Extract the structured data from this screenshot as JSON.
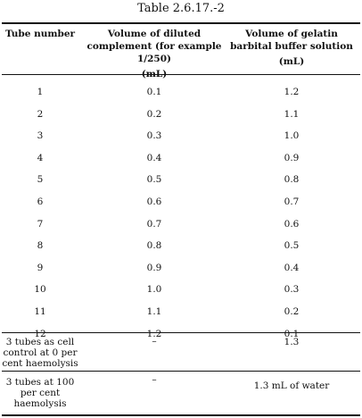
{
  "caption": "Table 2.6.17.-2",
  "headers": {
    "tube": "Tube number",
    "complement": "Volume of diluted complement (for example 1/250)",
    "complement_unit": "(mL)",
    "buffer": "Volume of gelatin barbital buffer solution",
    "buffer_unit": "(mL)"
  },
  "rows": [
    {
      "tube": "1",
      "complement": "0.1",
      "buffer": "1.2"
    },
    {
      "tube": "2",
      "complement": "0.2",
      "buffer": "1.1"
    },
    {
      "tube": "3",
      "complement": "0.3",
      "buffer": "1.0"
    },
    {
      "tube": "4",
      "complement": "0.4",
      "buffer": "0.9"
    },
    {
      "tube": "5",
      "complement": "0.5",
      "buffer": "0.8"
    },
    {
      "tube": "6",
      "complement": "0.6",
      "buffer": "0.7"
    },
    {
      "tube": "7",
      "complement": "0.7",
      "buffer": "0.6"
    },
    {
      "tube": "8",
      "complement": "0.8",
      "buffer": "0.5"
    },
    {
      "tube": "9",
      "complement": "0.9",
      "buffer": "0.4"
    },
    {
      "tube": "10",
      "complement": "1.0",
      "buffer": "0.3"
    },
    {
      "tube": "11",
      "complement": "1.1",
      "buffer": "0.2"
    },
    {
      "tube": "12",
      "complement": "1.2",
      "buffer": "0.1"
    }
  ],
  "controls": [
    {
      "tube": "3 tubes as cell control at 0 per cent haemolysis",
      "complement": "–",
      "buffer": "1.3"
    },
    {
      "tube": "3 tubes at 100 per cent haemolysis",
      "complement": "–",
      "buffer": "1.3 mL of water"
    }
  ]
}
